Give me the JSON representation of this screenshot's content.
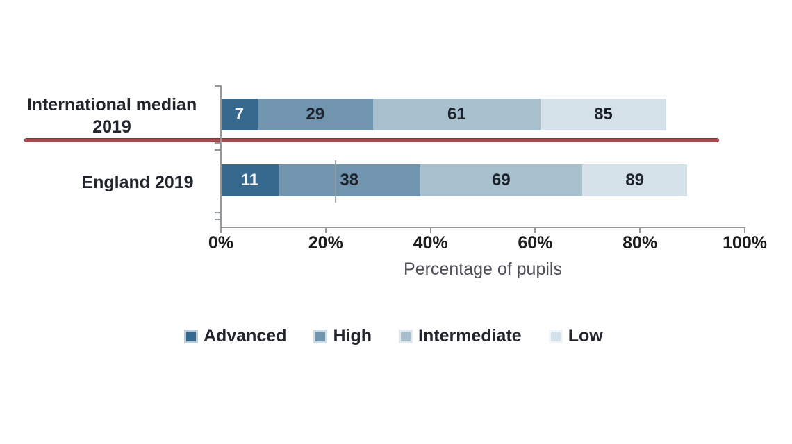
{
  "chart_data": {
    "type": "bar",
    "orientation": "horizontal",
    "values_are_cumulative": true,
    "categories": [
      "International median 2019",
      "England 2019"
    ],
    "category_display": [
      {
        "line1": "International median",
        "line2": "2019"
      },
      {
        "line1": "England 2019",
        "line2": ""
      }
    ],
    "series": [
      {
        "name": "Advanced",
        "color": "#35698e",
        "label_color": "#f2f6f9",
        "values": [
          7,
          11
        ]
      },
      {
        "name": "High",
        "color": "#7195af",
        "label_color": "#1d222b",
        "values": [
          29,
          38
        ]
      },
      {
        "name": "Intermediate",
        "color": "#a8c0ce",
        "label_color": "#1d222b",
        "values": [
          61,
          69
        ]
      },
      {
        "name": "Low",
        "color": "#d5e1e8",
        "label_color": "#1d222b",
        "values": [
          85,
          89
        ]
      }
    ],
    "xlabel": "Percentage of pupils",
    "x_ticks": [
      "0%",
      "20%",
      "40%",
      "60%",
      "80%",
      "100%"
    ],
    "xlim": [
      0,
      100
    ],
    "grid": false,
    "legend_position": "bottom",
    "legend": [
      "Advanced",
      "High",
      "Intermediate",
      "Low"
    ],
    "separator_line_color": "#a04c51",
    "axis_color": "#93989c"
  }
}
